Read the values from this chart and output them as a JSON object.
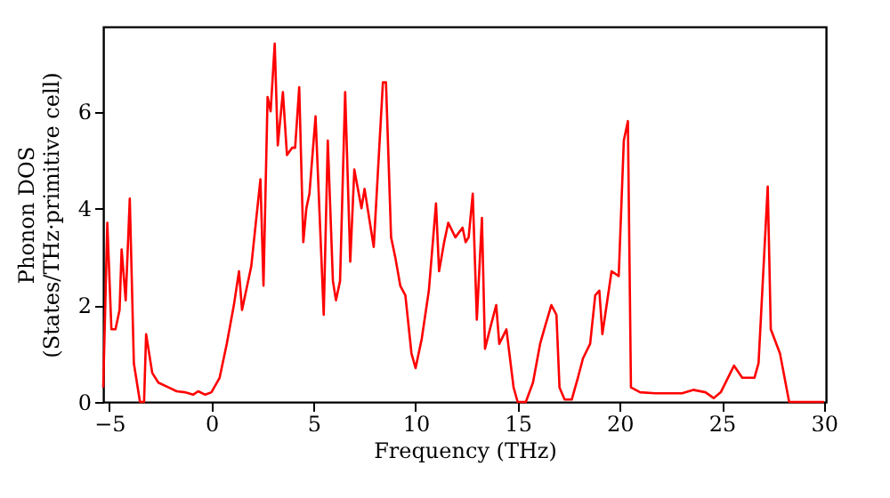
{
  "chart_data": {
    "type": "line",
    "xlabel": "Frequency (THz)",
    "ylabel": "Phonon DOS\n(States/THz·primitive cell)",
    "xlim": [
      -5.3,
      30.1
    ],
    "ylim": [
      0,
      7.75
    ],
    "xticks": [
      -5,
      0,
      5,
      10,
      15,
      20,
      25,
      30
    ],
    "yticks": [
      0,
      2,
      4,
      6
    ],
    "grid": false,
    "x": [
      -5.3,
      -5.1,
      -4.9,
      -4.7,
      -4.5,
      -4.4,
      -4.2,
      -4.0,
      -3.8,
      -3.5,
      -3.3,
      -3.2,
      -2.9,
      -2.6,
      -2.1,
      -1.7,
      -1.3,
      -0.9,
      -0.65,
      -0.3,
      0,
      0.4,
      0.75,
      1.1,
      1.35,
      1.5,
      1.95,
      2.4,
      2.55,
      2.75,
      2.9,
      3.1,
      3.25,
      3.5,
      3.7,
      3.95,
      4.1,
      4.3,
      4.5,
      4.65,
      4.8,
      5.1,
      5.5,
      5.7,
      5.95,
      6.1,
      6.3,
      6.55,
      6.8,
      7.0,
      7.35,
      7.5,
      7.95,
      8.4,
      8.55,
      8.8,
      9.0,
      9.25,
      9.5,
      9.8,
      10.0,
      10.3,
      10.65,
      11.0,
      11.15,
      11.4,
      11.6,
      11.95,
      12.3,
      12.45,
      12.6,
      12.8,
      13.0,
      13.25,
      13.4,
      13.7,
      13.95,
      14.1,
      14.45,
      14.8,
      15.0,
      15.4,
      15.75,
      16.1,
      16.3,
      16.65,
      16.9,
      17.05,
      17.3,
      17.65,
      17.95,
      18.2,
      18.55,
      18.8,
      19.0,
      19.15,
      19.6,
      19.95,
      20.2,
      20.4,
      20.55,
      21.0,
      21.75,
      23.05,
      23.6,
      24.2,
      24.6,
      24.95,
      25.6,
      26.0,
      26.6,
      26.8,
      27.25,
      27.4,
      27.85,
      28.3,
      30.0
    ],
    "series": [
      {
        "color": "#ff0000",
        "line_style": "solid",
        "marker": "none",
        "values": [
          0.3,
          3.7,
          1.5,
          1.5,
          1.9,
          3.15,
          2.1,
          4.2,
          0.8,
          0,
          0,
          1.4,
          0.6,
          0.4,
          0.3,
          0.22,
          0.2,
          0.15,
          0.22,
          0.15,
          0.2,
          0.5,
          1.2,
          2.0,
          2.7,
          1.9,
          2.8,
          4.6,
          2.4,
          6.3,
          6.0,
          7.4,
          5.3,
          6.4,
          5.1,
          5.25,
          5.25,
          6.5,
          3.3,
          4.0,
          4.3,
          5.9,
          1.8,
          5.4,
          2.5,
          2.1,
          2.5,
          6.4,
          2.9,
          4.8,
          4.0,
          4.4,
          3.2,
          6.6,
          6.6,
          3.4,
          3.0,
          2.4,
          2.2,
          1.0,
          0.7,
          1.3,
          2.3,
          4.1,
          2.7,
          3.3,
          3.7,
          3.4,
          3.6,
          3.3,
          3.4,
          4.3,
          1.7,
          3.8,
          1.1,
          1.6,
          2.0,
          1.2,
          1.5,
          0.3,
          0,
          0,
          0.4,
          1.2,
          1.5,
          2.0,
          1.8,
          0.3,
          0.05,
          0.05,
          0.5,
          0.9,
          1.2,
          2.2,
          2.3,
          1.4,
          2.7,
          2.6,
          5.4,
          5.8,
          0.3,
          0.2,
          0.18,
          0.18,
          0.25,
          0.2,
          0.08,
          0.2,
          0.75,
          0.5,
          0.5,
          0.8,
          4.45,
          1.5,
          1.0,
          0,
          0
        ]
      }
    ]
  }
}
